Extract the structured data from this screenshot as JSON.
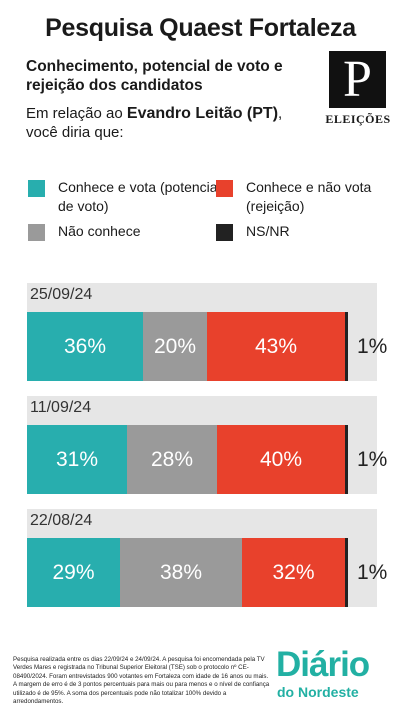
{
  "title": "Pesquisa Quaest Fortaleza",
  "subtitle": "Conhecimento, potencial de voto e rejeição dos candidatos",
  "question": {
    "prefix": "Em relação ao ",
    "candidate": "Evandro Leitão (PT)",
    "suffix": ", você diria que:"
  },
  "logo": {
    "mark": "P",
    "label": "ELEIÇÕES"
  },
  "chart_data": {
    "type": "bar",
    "stacked": true,
    "orientation": "horizontal",
    "categories": [
      "25/09/24",
      "11/09/24",
      "22/08/24"
    ],
    "series": [
      {
        "name": "Conhece e vota (potencial de voto)",
        "color": "#28aeae",
        "values": [
          36,
          31,
          29
        ]
      },
      {
        "name": "Não conhece",
        "color": "#9a9a9a",
        "values": [
          20,
          28,
          38
        ]
      },
      {
        "name": "Conhece e não vota (rejeição)",
        "color": "#e8412c",
        "values": [
          43,
          40,
          32
        ]
      },
      {
        "name": "NS/NR",
        "color": "#222222",
        "values": [
          1,
          1,
          1
        ]
      }
    ],
    "value_suffix": "%",
    "legend_position": "top"
  },
  "footer": "Pesquisa realizada entre os dias 22/09/24 e 24/09/24. A pesquisa foi encomendada pela TV Verdes Mares e registrada no Tribunal Superior Eleitoral (TSE) sob o protocolo nº CE-08490/2024. Foram entrevistados 900 votantes em Fortaleza com idade de 16 anos ou mais. A margem de erro é de 3 pontos percentuais para mais ou para menos e o nível de confiança utilizado é de 95%. A soma dos percentuais pode não totalizar 100% devido a arredondamentos.",
  "brand": {
    "line1": "Diário",
    "line2": "do Nordeste"
  }
}
